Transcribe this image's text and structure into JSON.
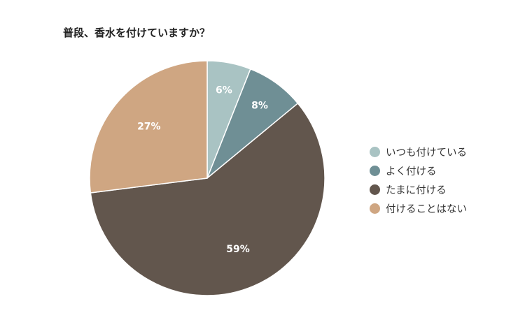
{
  "chart_data": {
    "type": "pie",
    "title": "普段、香水を付けていますか？",
    "categories": [
      "いつも付けている",
      "よく付ける",
      "たまに付ける",
      "付けることはない"
    ],
    "values": [
      6,
      8,
      59,
      27
    ],
    "data_labels": [
      "6%",
      "8%",
      "59%",
      "27%"
    ],
    "colors": [
      "#a9c3c3",
      "#6f8f95",
      "#62564d",
      "#cfa682"
    ],
    "legend_position": "right",
    "start_angle": "12 o'clock",
    "direction": "clockwise"
  }
}
